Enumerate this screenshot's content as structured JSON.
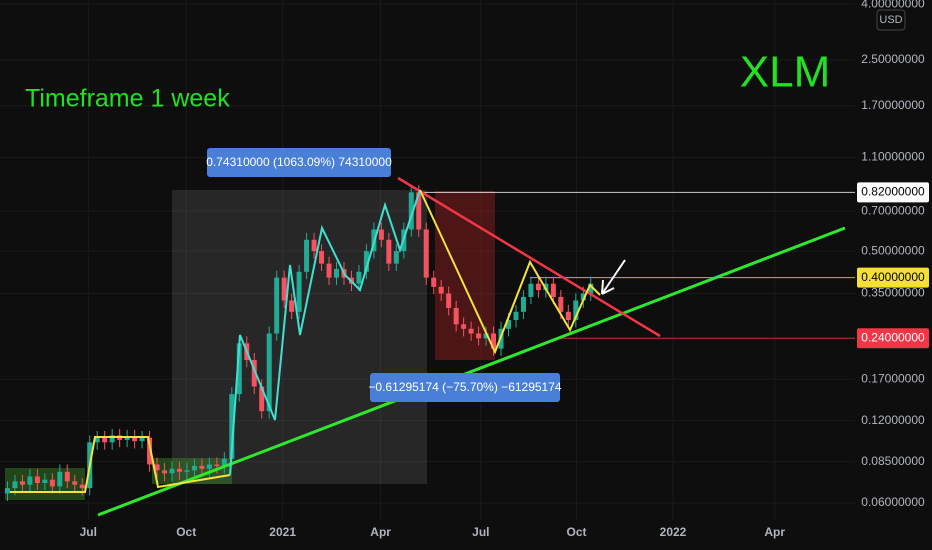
{
  "chart_data": {
    "type": "candlestick",
    "title": "XLM",
    "subtitle": "Timeframe 1 week",
    "currency": "USD",
    "log_scale": true,
    "grid": true,
    "up_color": "#22ab94",
    "down_color": "#f7525f",
    "x": [
      1,
      2,
      3,
      4,
      5,
      6,
      7,
      8,
      9,
      10,
      11,
      12,
      13,
      14,
      15,
      16,
      17,
      18,
      19,
      20,
      21,
      22,
      23,
      24,
      25,
      26,
      27,
      28,
      29,
      30,
      31,
      32,
      33,
      34,
      35,
      36,
      37,
      38,
      39,
      40,
      41,
      42,
      43,
      44,
      45,
      46,
      47,
      48,
      49,
      50,
      51,
      52,
      53,
      54,
      55,
      56,
      57,
      58,
      59,
      60,
      61,
      62,
      63,
      64,
      65,
      66,
      67,
      68,
      69,
      70,
      71,
      72,
      73,
      74,
      75,
      76,
      77,
      78,
      79
    ],
    "open": [
      0.065,
      0.068,
      0.072,
      0.07,
      0.075,
      0.071,
      0.073,
      0.069,
      0.078,
      0.072,
      0.07,
      0.068,
      0.1,
      0.104,
      0.1,
      0.106,
      0.102,
      0.105,
      0.101,
      0.104,
      0.083,
      0.079,
      0.077,
      0.08,
      0.078,
      0.079,
      0.082,
      0.08,
      0.083,
      0.082,
      0.087,
      0.15,
      0.23,
      0.2,
      0.16,
      0.13,
      0.25,
      0.4,
      0.33,
      0.3,
      0.42,
      0.55,
      0.5,
      0.45,
      0.4,
      0.43,
      0.4,
      0.38,
      0.42,
      0.5,
      0.6,
      0.55,
      0.45,
      0.5,
      0.6,
      0.82,
      0.6,
      0.4,
      0.37,
      0.35,
      0.31,
      0.27,
      0.26,
      0.25,
      0.24,
      0.25,
      0.22,
      0.26,
      0.28,
      0.3,
      0.34,
      0.38,
      0.36,
      0.38,
      0.34,
      0.3,
      0.28,
      0.33,
      0.35
    ],
    "high": [
      0.072,
      0.076,
      0.076,
      0.08,
      0.08,
      0.077,
      0.077,
      0.083,
      0.083,
      0.076,
      0.074,
      0.106,
      0.11,
      0.11,
      0.112,
      0.112,
      0.111,
      0.111,
      0.11,
      0.11,
      0.088,
      0.084,
      0.085,
      0.085,
      0.084,
      0.087,
      0.087,
      0.088,
      0.088,
      0.092,
      0.159,
      0.244,
      0.244,
      0.212,
      0.17,
      0.265,
      0.424,
      0.424,
      0.35,
      0.445,
      0.583,
      0.583,
      0.53,
      0.477,
      0.456,
      0.456,
      0.424,
      0.445,
      0.53,
      0.636,
      0.636,
      0.583,
      0.53,
      0.636,
      0.87,
      0.87,
      0.636,
      0.424,
      0.392,
      0.371,
      0.329,
      0.286,
      0.276,
      0.265,
      0.265,
      0.265,
      0.276,
      0.297,
      0.318,
      0.36,
      0.403,
      0.403,
      0.403,
      0.403,
      0.36,
      0.318,
      0.35,
      0.371,
      0.403
    ],
    "low": [
      0.061,
      0.064,
      0.066,
      0.066,
      0.067,
      0.067,
      0.065,
      0.065,
      0.068,
      0.066,
      0.064,
      0.064,
      0.094,
      0.094,
      0.094,
      0.096,
      0.096,
      0.095,
      0.095,
      0.078,
      0.074,
      0.072,
      0.072,
      0.073,
      0.073,
      0.074,
      0.075,
      0.075,
      0.077,
      0.077,
      0.082,
      0.141,
      0.188,
      0.15,
      0.122,
      0.122,
      0.235,
      0.31,
      0.282,
      0.282,
      0.395,
      0.47,
      0.423,
      0.376,
      0.376,
      0.376,
      0.357,
      0.357,
      0.395,
      0.47,
      0.517,
      0.423,
      0.423,
      0.47,
      0.564,
      0.564,
      0.376,
      0.348,
      0.329,
      0.291,
      0.254,
      0.244,
      0.235,
      0.226,
      0.226,
      0.207,
      0.207,
      0.244,
      0.263,
      0.282,
      0.32,
      0.338,
      0.338,
      0.32,
      0.282,
      0.263,
      0.263,
      0.31,
      0.329
    ],
    "close": [
      0.068,
      0.072,
      0.07,
      0.075,
      0.071,
      0.073,
      0.069,
      0.078,
      0.072,
      0.07,
      0.068,
      0.1,
      0.104,
      0.1,
      0.106,
      0.102,
      0.105,
      0.101,
      0.104,
      0.083,
      0.079,
      0.077,
      0.08,
      0.078,
      0.079,
      0.082,
      0.08,
      0.083,
      0.082,
      0.087,
      0.15,
      0.23,
      0.2,
      0.16,
      0.13,
      0.25,
      0.4,
      0.33,
      0.3,
      0.42,
      0.55,
      0.5,
      0.45,
      0.4,
      0.43,
      0.4,
      0.38,
      0.42,
      0.5,
      0.6,
      0.55,
      0.45,
      0.5,
      0.6,
      0.82,
      0.6,
      0.4,
      0.37,
      0.35,
      0.31,
      0.27,
      0.26,
      0.25,
      0.24,
      0.25,
      0.22,
      0.26,
      0.28,
      0.3,
      0.34,
      0.38,
      0.36,
      0.38,
      0.34,
      0.3,
      0.28,
      0.33,
      0.35,
      0.38
    ],
    "xlim": [
      0,
      113
    ],
    "xticks": [
      {
        "value": 11.8,
        "label": "Jul"
      },
      {
        "value": 24.9,
        "label": "Oct"
      },
      {
        "value": 37.8,
        "label": "2021"
      },
      {
        "value": 50.9,
        "label": "Apr"
      },
      {
        "value": 64.3,
        "label": "Jul"
      },
      {
        "value": 77.1,
        "label": "Oct"
      },
      {
        "value": 90,
        "label": "2022"
      },
      {
        "value": 103.6,
        "label": "Apr"
      }
    ],
    "ylim": [
      0.052,
      4.14
    ],
    "yticks": [
      {
        "value": 0.06,
        "label": "0.06000000"
      },
      {
        "value": 0.085,
        "label": "0.08500000"
      },
      {
        "value": 0.12,
        "label": "0.12000000"
      },
      {
        "value": 0.17,
        "label": "0.17000000"
      },
      {
        "value": 0.35,
        "label": "0.35000000"
      },
      {
        "value": 0.5,
        "label": "0.50000000"
      },
      {
        "value": 0.7,
        "label": "0.70000000"
      },
      {
        "value": 1.1,
        "label": "1.10000000"
      },
      {
        "value": 1.7,
        "label": "1.70000000"
      },
      {
        "value": 2.5,
        "label": "2.50000000"
      },
      {
        "value": 4,
        "label": "4.00000000"
      }
    ],
    "price_lines": [
      {
        "value": 0.82,
        "label": "0.82000000",
        "color": "#ffffff"
      },
      {
        "value": 0.4,
        "label": "0.40000000",
        "color": "#f5e033"
      },
      {
        "value": 0.24,
        "label": "0.24000000",
        "color": "#f23645"
      }
    ],
    "annotations": [
      "0.74310000 (1063.09%) 74310000",
      "−0.61295174 (−75.70%) −61295174"
    ]
  }
}
